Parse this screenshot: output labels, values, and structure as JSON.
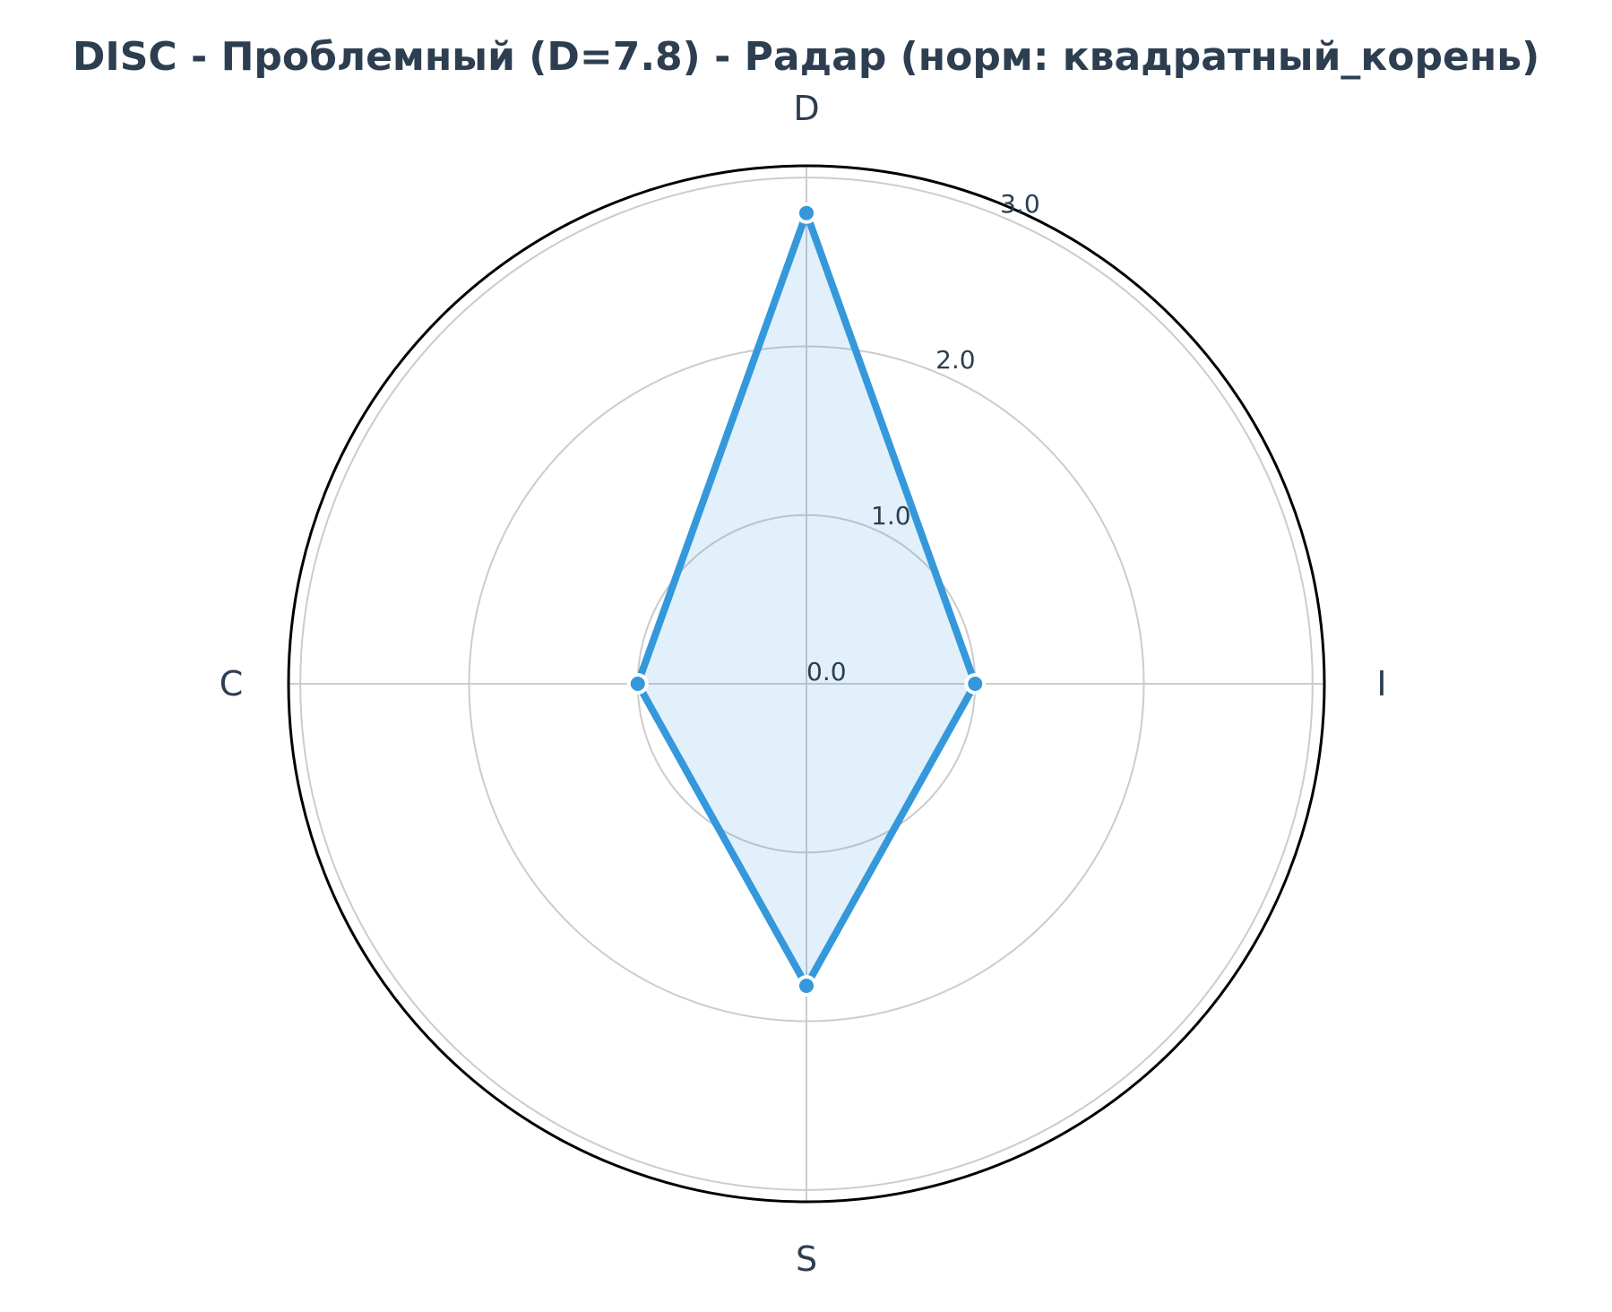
{
  "chart_data": {
    "type": "radar",
    "title": "DISC - Проблемный (D=7.8) - Радар (норм: квадратный_корень)",
    "categories": [
      "D",
      "I",
      "S",
      "C"
    ],
    "series": [
      {
        "values": [
          2.79,
          1.0,
          1.79,
          1.0
        ]
      }
    ],
    "rticks": [
      0.0,
      1.0,
      2.0,
      3.0
    ],
    "rtick_labels": [
      "0.0",
      "1.0",
      "2.0",
      "3.0"
    ],
    "rlim": [
      0,
      3.07
    ],
    "grid": true,
    "colors": {
      "line": "#3498db",
      "fill": "#3498db",
      "text": "#2c3e50",
      "grid": "#cccccc",
      "frame": "#000000"
    }
  }
}
